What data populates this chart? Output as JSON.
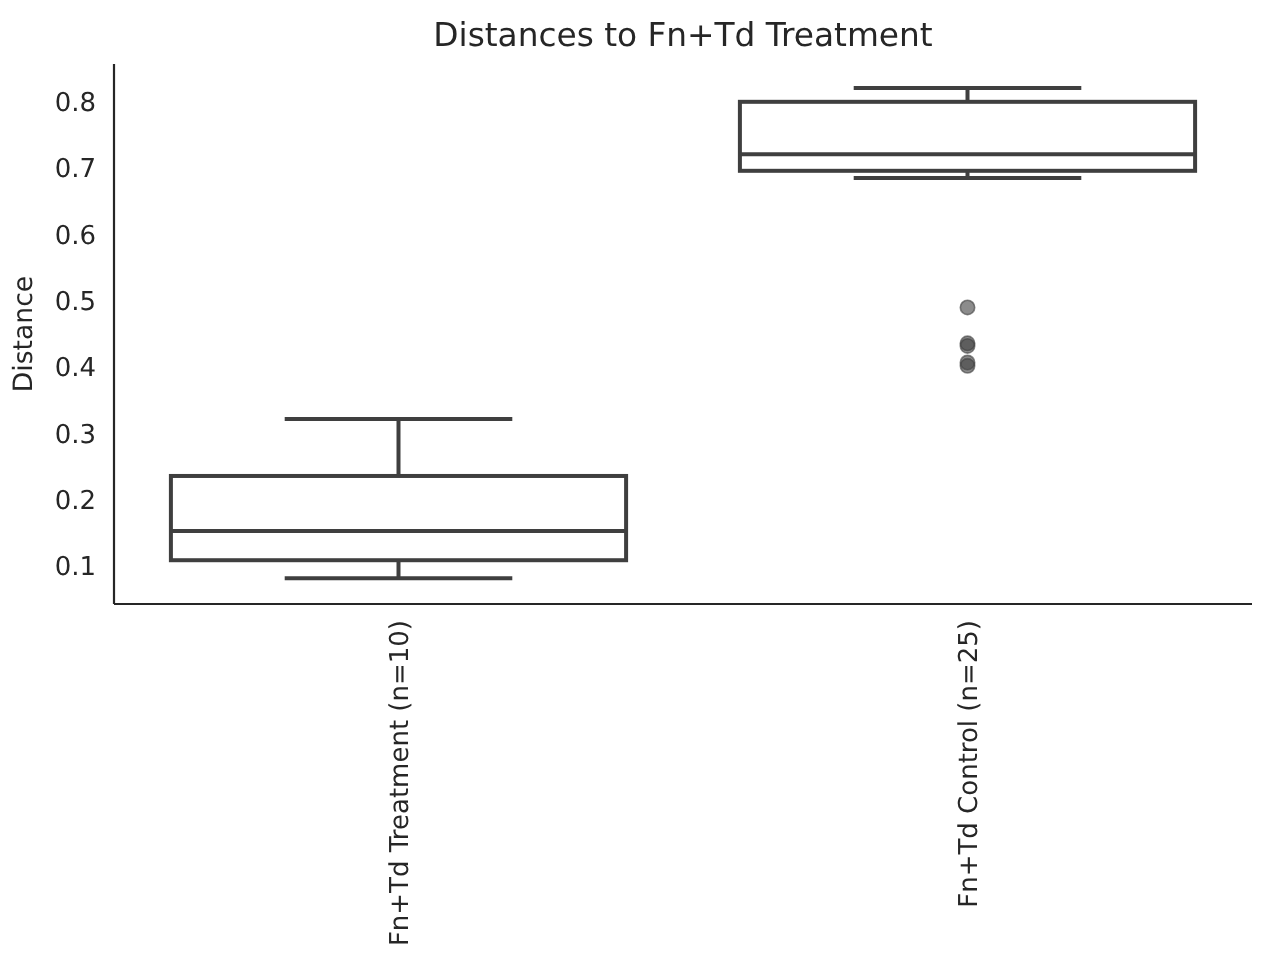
{
  "chart_data": {
    "type": "box",
    "title": "Distances to Fn+Td Treatment",
    "ylabel": "Distance",
    "categories": [
      "Fn+Td Treatment (n=10)",
      "Fn+Td Control (n=25)"
    ],
    "color": "#3f3f3f",
    "boxes": [
      {
        "low": 0.082,
        "q1": 0.109,
        "median": 0.153,
        "q3": 0.236,
        "high": 0.322
      },
      {
        "low": 0.685,
        "q1": 0.696,
        "median": 0.721,
        "q3": 0.8,
        "high": 0.821,
        "outliers": [
          0.49,
          0.436,
          0.432,
          0.407,
          0.402
        ]
      }
    ],
    "ylim": [
      0.043,
      0.857
    ],
    "yticks": [
      0.1,
      0.2,
      0.3,
      0.4,
      0.5,
      0.6,
      0.7,
      0.8
    ],
    "grid": false
  }
}
